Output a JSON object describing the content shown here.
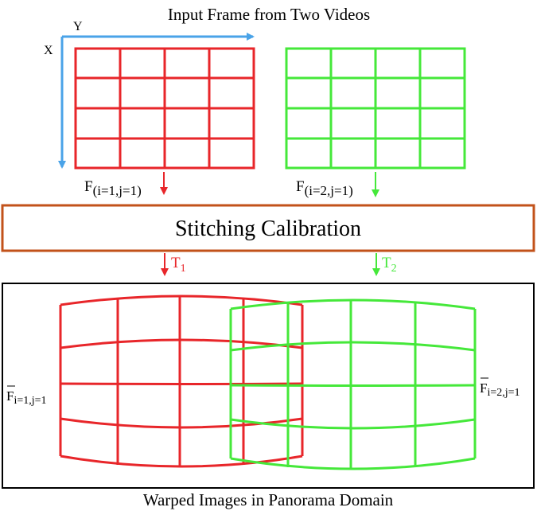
{
  "title_top": "Input Frame from Two Videos",
  "axis": {
    "x_label": "X",
    "y_label": "Y"
  },
  "frame1": {
    "label_main": "F",
    "label_sub": "(i=1,j=1)"
  },
  "frame2": {
    "label_main": "F",
    "label_sub": "(i=2,j=1)"
  },
  "calibration": {
    "label": "Stitching Calibration"
  },
  "transform1": {
    "main": "T",
    "sub": "1"
  },
  "transform2": {
    "main": "T",
    "sub": "2"
  },
  "warped1": {
    "main": "F",
    "sub": "i=1,j=1"
  },
  "warped2": {
    "main": "F",
    "sub": "i=2,j=1"
  },
  "title_bottom": "Warped Images in Panorama Domain",
  "colors": {
    "red": "#e8262a",
    "green": "#45e83a",
    "axis_blue": "#4aa3e8",
    "calibration_border": "#c2521a",
    "text": "#000000"
  }
}
